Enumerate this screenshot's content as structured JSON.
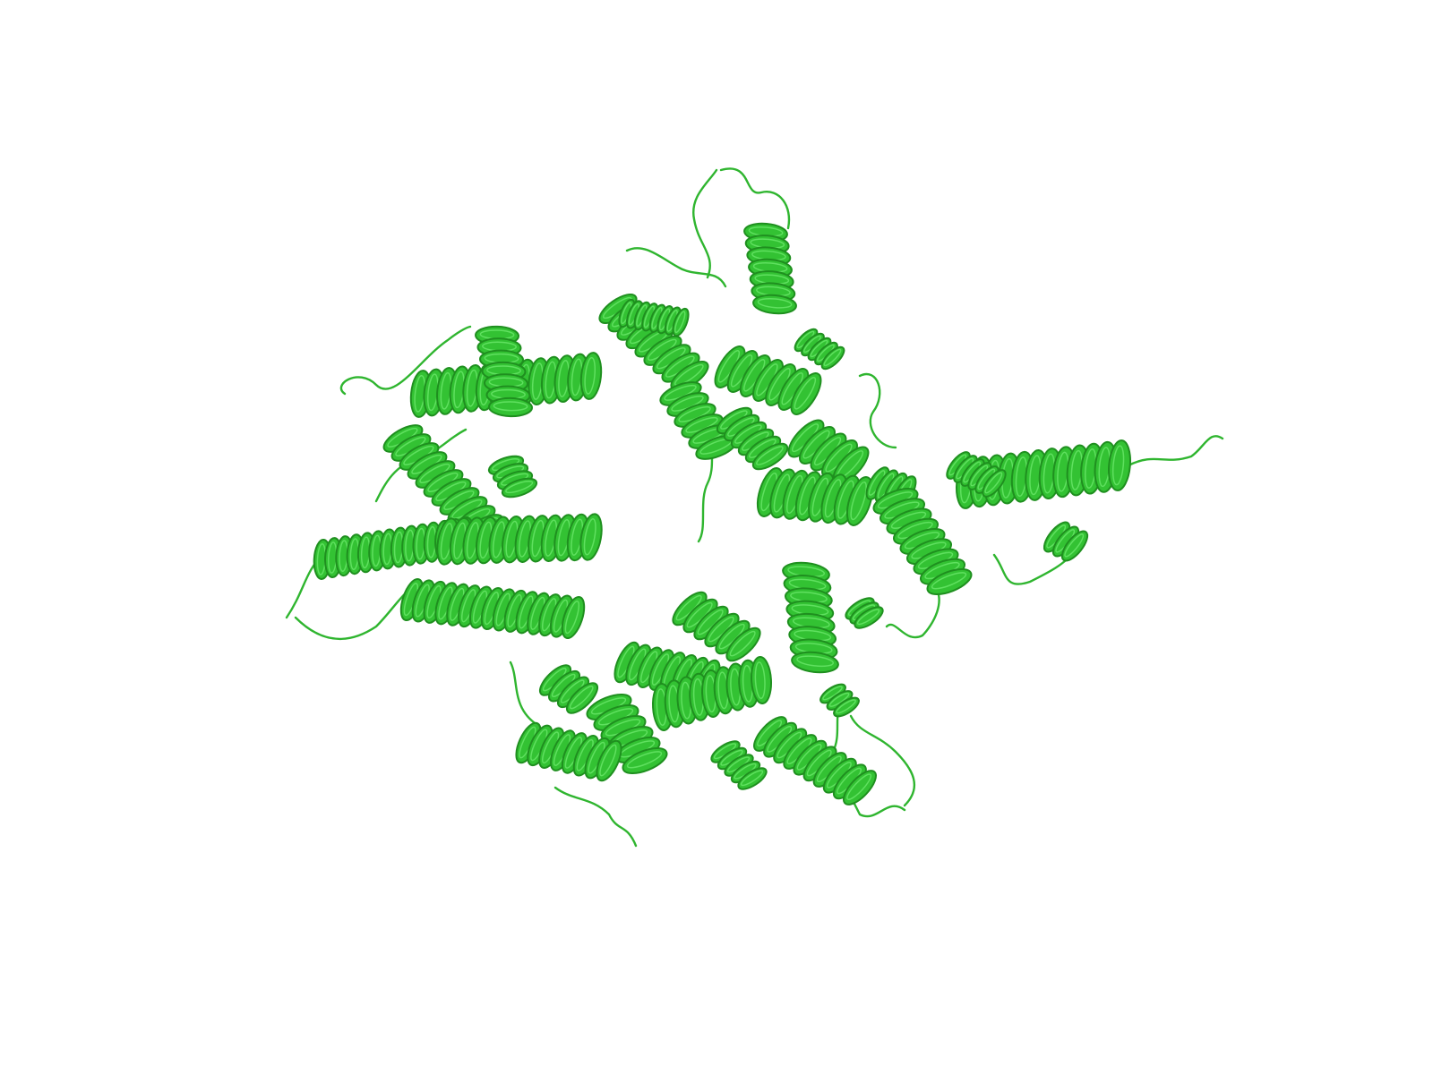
{
  "scene": {
    "background": "#ffffff",
    "colors": {
      "helix_fill": "#33c233",
      "helix_dark": "#1f8f1f",
      "helix_light": "#5fe05f",
      "coil": "#2fb52f"
    },
    "icon": "protein-cartoon-ribbon"
  }
}
